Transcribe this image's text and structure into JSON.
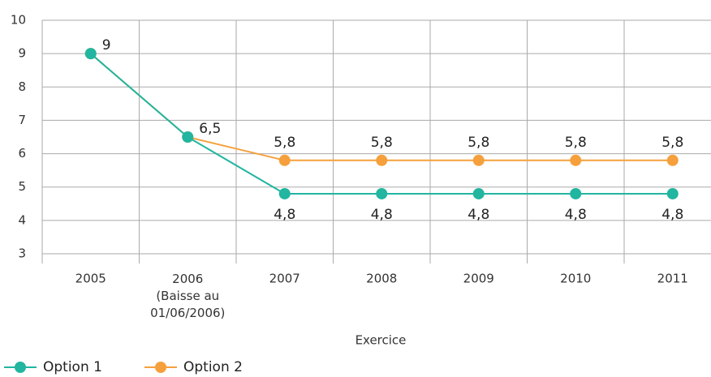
{
  "chart_data": {
    "type": "line",
    "categories": [
      "2005",
      "2006\n(Baisse au\n01/06/2006)",
      "2007",
      "2008",
      "2009",
      "2010",
      "2011"
    ],
    "x_label": "Exercice",
    "series": [
      {
        "name": "Option 2",
        "color": "#f5a03c",
        "values": [
          9,
          6.5,
          5.8,
          5.8,
          5.8,
          5.8,
          5.8
        ],
        "value_labels": [
          "9",
          "6,5",
          "5,8",
          "5,8",
          "5,8",
          "5,8",
          "5,8"
        ]
      },
      {
        "name": "Option 1",
        "color": "#22b5a0",
        "values": [
          9,
          6.5,
          4.8,
          4.8,
          4.8,
          4.8,
          4.8
        ],
        "value_labels": [
          null,
          null,
          "4,8",
          "4,8",
          "4,8",
          "4,8",
          "4,8"
        ]
      }
    ],
    "ylim": [
      3,
      10
    ],
    "yticks": [
      3,
      4,
      5,
      6,
      7,
      8,
      9,
      10
    ],
    "grid": true,
    "legend": "bottom-left"
  }
}
